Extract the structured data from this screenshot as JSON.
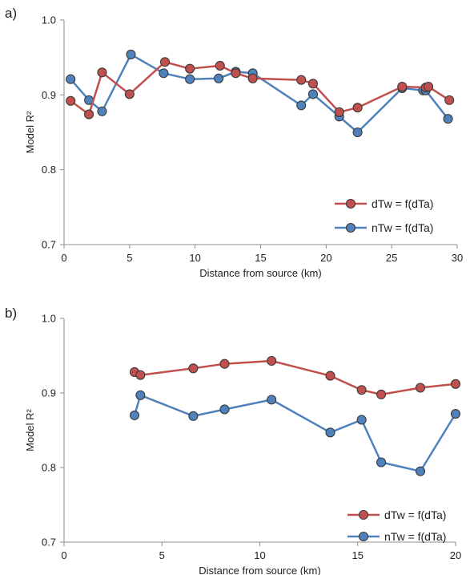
{
  "chart_data": [
    {
      "type": "line",
      "panel_label": "a)",
      "xlabel": "Distance from source (km)",
      "ylabel": "Model R²",
      "xlim": [
        0,
        30
      ],
      "ylim": [
        0.7,
        1.0
      ],
      "xticks": [
        0,
        5,
        10,
        15,
        20,
        25,
        30
      ],
      "yticks": [
        "0.7",
        "0.8",
        "0.9",
        "1.0"
      ],
      "grid": false,
      "legend_position": "bottom-right",
      "series": [
        {
          "name": "dTw = f(dTa)",
          "color": "#c0504d",
          "x": [
            0.5,
            1.9,
            2.9,
            5.0,
            7.7,
            9.6,
            11.9,
            13.1,
            14.4,
            18.1,
            19.0,
            21.0,
            22.4,
            25.8,
            27.6,
            27.8,
            29.4
          ],
          "y": [
            0.892,
            0.874,
            0.93,
            0.901,
            0.944,
            0.935,
            0.939,
            0.929,
            0.922,
            0.92,
            0.915,
            0.877,
            0.883,
            0.911,
            0.91,
            0.911,
            0.893
          ]
        },
        {
          "name": "nTw = f(dTa)",
          "color": "#4f81bd",
          "x": [
            0.5,
            1.9,
            2.9,
            5.1,
            7.6,
            9.6,
            11.8,
            13.1,
            14.4,
            18.1,
            19.0,
            21.0,
            22.4,
            25.8,
            27.4,
            27.6,
            29.3
          ],
          "y": [
            0.921,
            0.893,
            0.878,
            0.954,
            0.929,
            0.921,
            0.922,
            0.931,
            0.929,
            0.886,
            0.901,
            0.871,
            0.85,
            0.909,
            0.906,
            0.906,
            0.868
          ]
        }
      ]
    },
    {
      "type": "line",
      "panel_label": "b)",
      "xlabel": "Distance from source (km)",
      "ylabel": "Model R²",
      "xlim": [
        0,
        20
      ],
      "ylim": [
        0.7,
        1.0
      ],
      "xticks": [
        0,
        5,
        10,
        15,
        20
      ],
      "yticks": [
        "0.7",
        "0.8",
        "0.9",
        "1.0"
      ],
      "grid": false,
      "legend_position": "bottom-right",
      "series": [
        {
          "name": "dTw = f(dTa)",
          "color": "#c0504d",
          "x": [
            3.6,
            3.9,
            6.6,
            8.2,
            10.6,
            13.6,
            15.2,
            16.2,
            18.2,
            20.0
          ],
          "y": [
            0.928,
            0.924,
            0.933,
            0.939,
            0.943,
            0.923,
            0.904,
            0.898,
            0.907,
            0.912
          ]
        },
        {
          "name": "nTw = f(dTa)",
          "color": "#4f81bd",
          "x": [
            3.6,
            3.9,
            6.6,
            8.2,
            10.6,
            13.6,
            15.2,
            16.2,
            18.2,
            20.0
          ],
          "y": [
            0.87,
            0.897,
            0.869,
            0.878,
            0.891,
            0.847,
            0.864,
            0.807,
            0.795,
            0.872
          ]
        }
      ]
    }
  ]
}
